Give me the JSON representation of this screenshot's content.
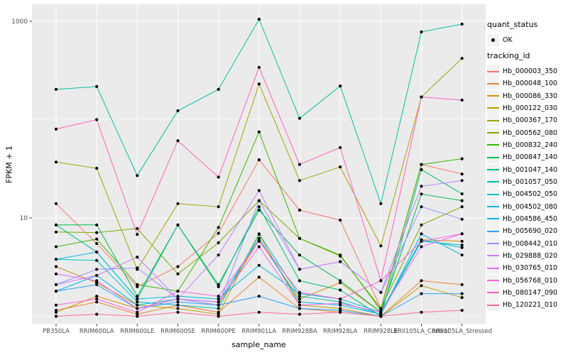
{
  "figure": {
    "background": "#FFFFFF",
    "panel_bg": "#EBEBEB",
    "grid_color": "#FFFFFF",
    "axis_text_color": "#4D4D4D",
    "tick_color": "#333333",
    "point_color": "#000000",
    "legend_key_bg": "#F2F2F2"
  },
  "axes": {
    "x_title": "sample_name",
    "y_title": "FPKM + 1",
    "y_tick_labels": [
      "1000",
      "10"
    ],
    "y_tick_values": [
      1000,
      10
    ]
  },
  "legend": {
    "quant_status_title": "quant_status",
    "ok_label": "OK",
    "tracking_id_title": "tracking_id"
  },
  "chart_data": {
    "type": "line",
    "y_scale": "log10",
    "ylabel": "FPKM + 1",
    "xlabel": "sample_name",
    "ylim": [
      0.85,
      1480
    ],
    "y_gridlines_major": [
      10,
      1000
    ],
    "y_gridlines_minor": [
      1,
      100
    ],
    "legend_position": "right",
    "marker": "black-point",
    "categories": [
      "PB350LA",
      "RRIM600LA",
      "RRIM600LE",
      "RRIM600SE",
      "RRIM600PE",
      "RRIM901LA",
      "RRIM928BA",
      "RRIM928LA",
      "RRIM928LE",
      "RRII105LA_Control",
      "RRII105LA_Stressed"
    ],
    "series": [
      {
        "name": "Hb_000003_350",
        "color": "#F8766D",
        "values": [
          14,
          5.5,
          2.0,
          3.2,
          7.0,
          39,
          12,
          9.5,
          1.2,
          35,
          28
        ]
      },
      {
        "name": "Hb_000048_100",
        "color": "#EA8331",
        "values": [
          1.15,
          1.4,
          1.05,
          1.3,
          1.1,
          2.5,
          1.2,
          1.1,
          1.0,
          2.3,
          2.1
        ]
      },
      {
        "name": "Hb_000086_330",
        "color": "#D89000",
        "values": [
          1.1,
          1.6,
          1.2,
          1.5,
          1.3,
          5.9,
          1.5,
          2.2,
          1.1,
          6.0,
          5.8
        ]
      },
      {
        "name": "Hb_000122_030",
        "color": "#C09B00",
        "values": [
          3.2,
          2.2,
          1.3,
          1.2,
          1.05,
          6.8,
          1.3,
          1.2,
          1.0,
          2.05,
          1.55
        ]
      },
      {
        "name": "Hb_000367_170",
        "color": "#A3A500",
        "values": [
          37,
          32,
          3.0,
          14,
          13,
          230,
          24,
          33,
          5.2,
          170,
          420
        ]
      },
      {
        "name": "Hb_000562_080",
        "color": "#7CAE00",
        "values": [
          7.2,
          7.1,
          7.8,
          2.7,
          5.6,
          15,
          6.2,
          4.1,
          1.2,
          8.5,
          13
        ]
      },
      {
        "name": "Hb_000832_240",
        "color": "#39B600",
        "values": [
          5.1,
          6.1,
          2.1,
          1.8,
          8.0,
          75,
          6.2,
          4.2,
          1.15,
          35,
          40
        ]
      },
      {
        "name": "Hb_000847_140",
        "color": "#00BB4E",
        "values": [
          8.5,
          8.5,
          1.6,
          8.5,
          2.1,
          12,
          4.2,
          2.3,
          1.1,
          17.5,
          15
        ]
      },
      {
        "name": "Hb_001047_140",
        "color": "#00BF7D",
        "values": [
          8.5,
          4.5,
          1.5,
          8.5,
          2.0,
          13,
          2.3,
          1.85,
          1.0,
          31,
          17.6
        ]
      },
      {
        "name": "Hb_001057_050",
        "color": "#00C1A3",
        "values": [
          203,
          217,
          27,
          123,
          203,
          1050,
          103,
          220,
          14,
          780,
          936
        ]
      },
      {
        "name": "Hb_004502_050",
        "color": "#00C0C2",
        "values": [
          3.8,
          3.7,
          1.4,
          1.3,
          1.2,
          6.9,
          1.6,
          1.4,
          1.05,
          5.8,
          5.3
        ]
      },
      {
        "name": "Hb_004502_080",
        "color": "#00BCDC",
        "values": [
          3.8,
          4.5,
          1.5,
          1.6,
          1.5,
          3.3,
          1.7,
          1.5,
          1.1,
          6.0,
          5.0
        ]
      },
      {
        "name": "Hb_004586_450",
        "color": "#00B5F1",
        "values": [
          1.8,
          2.6,
          1.3,
          1.5,
          1.4,
          6.2,
          1.4,
          1.3,
          1.05,
          6.9,
          4.2
        ]
      },
      {
        "name": "Hb_005690_020",
        "color": "#29A3FF",
        "values": [
          1.8,
          2.1,
          1.2,
          1.4,
          1.3,
          1.6,
          1.2,
          1.15,
          1.0,
          1.7,
          1.7
        ]
      },
      {
        "name": "Hb_008442_010",
        "color": "#9590FF",
        "values": [
          2.1,
          3.0,
          3.1,
          1.5,
          1.3,
          15,
          3.0,
          3.6,
          1.75,
          13,
          9.7
        ]
      },
      {
        "name": "Hb_029888_020",
        "color": "#C77CFF",
        "values": [
          2.1,
          2.6,
          4.0,
          1.5,
          4.2,
          19,
          3.0,
          3.6,
          1.75,
          21,
          24
        ]
      },
      {
        "name": "Hb_030765_010",
        "color": "#E76BF3",
        "values": [
          2.7,
          2.3,
          1.2,
          1.5,
          1.4,
          5.1,
          1.3,
          1.35,
          1.1,
          5.1,
          6.9
        ]
      },
      {
        "name": "Hb_056768_010",
        "color": "#FA62DB",
        "values": [
          1.3,
          1.5,
          1.1,
          1.8,
          1.6,
          5.8,
          1.75,
          1.5,
          2.3,
          5.8,
          6.9
        ]
      },
      {
        "name": "Hb_080147_090",
        "color": "#FF61BA",
        "values": [
          80,
          100,
          6.8,
          61,
          26,
          340,
          35,
          52,
          2.3,
          170,
          158
        ]
      },
      {
        "name": "Hb_120221_010",
        "color": "#FF689B",
        "values": [
          1.0,
          1.05,
          1.0,
          1.1,
          1.0,
          1.1,
          1.05,
          1.1,
          1.0,
          1.1,
          1.15
        ]
      }
    ]
  }
}
